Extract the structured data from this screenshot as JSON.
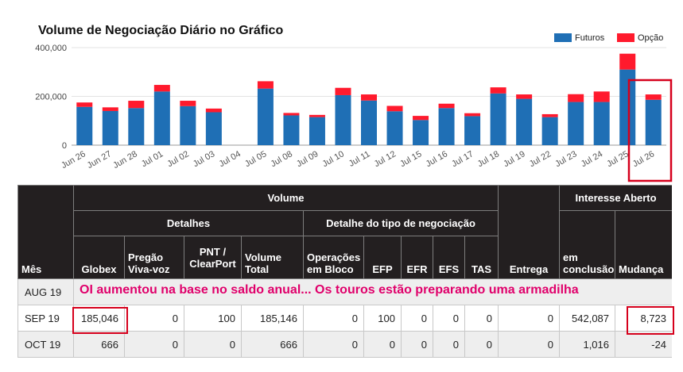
{
  "chart_data": {
    "type": "bar",
    "stacked": true,
    "title": "Volume de Negociação Diário no Gráfico",
    "categories": [
      "Jun 26",
      "Jun 27",
      "Jun 28",
      "Jul 01",
      "Jul 02",
      "Jul 03",
      "Jul 04",
      "Jul 05",
      "Jul 08",
      "Jul 09",
      "Jul 10",
      "Jul 11",
      "Jul 12",
      "Jul 15",
      "Jul 16",
      "Jul 17",
      "Jul 18",
      "Jul 19",
      "Jul 22",
      "Jul 23",
      "Jul 24",
      "Jul 25",
      "Jul 26"
    ],
    "series": [
      {
        "name": "Futuros",
        "color": "#1f6fb5",
        "values": [
          157000,
          140000,
          152000,
          220000,
          160000,
          135000,
          0,
          232000,
          122000,
          115000,
          205000,
          183000,
          139000,
          103000,
          152000,
          119000,
          212000,
          190000,
          115000,
          177000,
          177000,
          310000,
          186000
        ]
      },
      {
        "name": "Opção",
        "color": "#ff1a2d",
        "values": [
          18000,
          15000,
          30000,
          27000,
          22000,
          15000,
          0,
          30000,
          10000,
          9000,
          30000,
          25000,
          22000,
          17000,
          18000,
          12000,
          25000,
          18000,
          12000,
          32000,
          43000,
          65000,
          22000
        ]
      }
    ],
    "yticks": [
      "0",
      "200,000",
      "400,000"
    ],
    "ylim": [
      0,
      400000
    ],
    "legend": "top-right",
    "grid": true
  },
  "table": {
    "headers": {
      "mes": "Mês",
      "volume": "Volume",
      "interesse": "Interesse Aberto",
      "detalhes": "Detalhes",
      "detalhe_tipo": "Detalhe do tipo de negociação",
      "globex": "Globex",
      "pregao": "Pregão Viva-voz",
      "pnt": "PNT / ClearPort",
      "volume_total": "Volume Total",
      "operacoes": "Operações em Bloco",
      "efp": "EFP",
      "efr": "EFR",
      "efs": "EFS",
      "tas": "TAS",
      "entrega": "Entrega",
      "em_conclusao": "em conclusão",
      "mudanca": "Mudança"
    },
    "rows": [
      {
        "mes": "AUG 19"
      },
      {
        "mes": "SEP 19",
        "globex": "185,046",
        "pregao": "0",
        "pnt": "100",
        "volume_total": "185,146",
        "operacoes": "0",
        "efp": "100",
        "efr": "0",
        "efs": "0",
        "tas": "0",
        "entrega": "0",
        "em_conclusao": "542,087",
        "mudanca": "8,723"
      },
      {
        "mes": "OCT 19",
        "globex": "666",
        "pregao": "0",
        "pnt": "0",
        "volume_total": "666",
        "operacoes": "0",
        "efp": "0",
        "efr": "0",
        "efs": "0",
        "tas": "0",
        "entrega": "0",
        "em_conclusao": "1,016",
        "mudanca": "-24"
      }
    ]
  },
  "annotation": {
    "text": "OI aumentou na base no saldo anual... Os touros estão preparando uma armadilha",
    "color": "#e0006b",
    "box_color": "#d6001c"
  }
}
